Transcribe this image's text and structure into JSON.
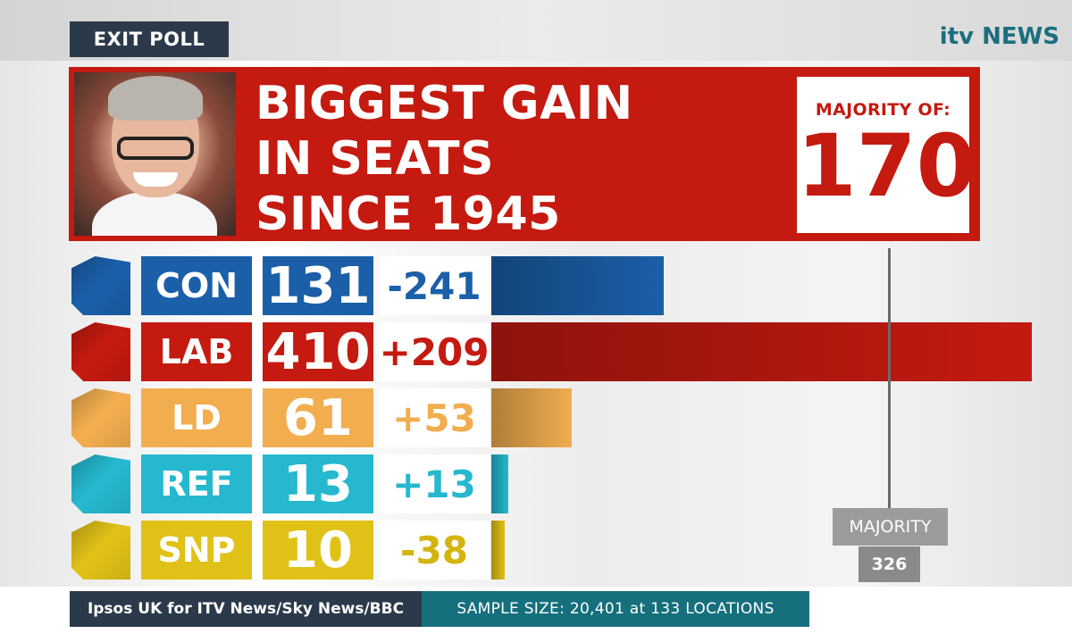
{
  "header": {
    "badge": "EXIT POLL",
    "brand": "itv NEWS"
  },
  "headline": {
    "lines": [
      "BIGGEST GAIN",
      "IN SEATS",
      "SINCE 1945"
    ],
    "majority_label": "MAJORITY OF:",
    "majority_value": "170"
  },
  "chart_data": {
    "type": "bar",
    "orientation": "horizontal",
    "categories": [
      "CON",
      "LAB",
      "LD",
      "REF",
      "SNP"
    ],
    "values": [
      131,
      410,
      61,
      13,
      10
    ],
    "changes": [
      "-241",
      "+209",
      "+53",
      "+13",
      "-38"
    ],
    "colors": [
      "#1a5fa8",
      "#c41a10",
      "#f2ad4f",
      "#25b8cf",
      "#e0c117"
    ],
    "change_colors": [
      "#1a5fa8",
      "#c41a10",
      "#f2ad4f",
      "#25b8cf",
      "#d4b40f"
    ],
    "reference_line": {
      "label": "MAJORITY",
      "value": 326
    },
    "xlim": [
      0,
      410
    ]
  },
  "footer": {
    "source": "Ipsos UK for ITV News/Sky News/BBC",
    "sample": "SAMPLE SIZE: 20,401 at 133 LOCATIONS"
  }
}
